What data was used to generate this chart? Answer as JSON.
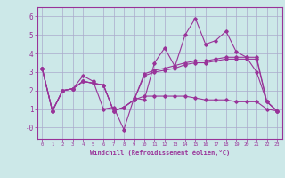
{
  "title": "",
  "xlabel": "Windchill (Refroidissement éolien,°C)",
  "ylabel": "",
  "background_color": "#cce8e8",
  "grid_color": "#aaaacc",
  "line_color": "#993399",
  "xlim": [
    -0.5,
    23.5
  ],
  "ylim": [
    -0.6,
    6.5
  ],
  "yticks": [
    0,
    1,
    2,
    3,
    4,
    5,
    6
  ],
  "ytick_labels": [
    "-0",
    "1",
    "2",
    "3",
    "4",
    "5",
    "6"
  ],
  "xticks": [
    0,
    1,
    2,
    3,
    4,
    5,
    6,
    7,
    8,
    9,
    10,
    11,
    12,
    13,
    14,
    15,
    16,
    17,
    18,
    19,
    20,
    21,
    22,
    23
  ],
  "series": [
    {
      "x": [
        0,
        1,
        2,
        3,
        4,
        5,
        6,
        7,
        8,
        9,
        10,
        11,
        12,
        13,
        14,
        15,
        16,
        17,
        18,
        19,
        20,
        21,
        22,
        23
      ],
      "y": [
        3.2,
        0.9,
        2.0,
        2.1,
        2.8,
        2.5,
        1.0,
        1.1,
        -0.1,
        1.6,
        1.5,
        3.5,
        4.3,
        3.3,
        5.0,
        5.9,
        4.5,
        4.7,
        5.2,
        4.1,
        3.8,
        3.0,
        1.4,
        0.9
      ]
    },
    {
      "x": [
        0,
        1,
        2,
        3,
        4,
        5,
        6,
        7,
        8,
        9,
        10,
        11,
        12,
        13,
        14,
        15,
        16,
        17,
        18,
        19,
        20,
        21,
        22,
        23
      ],
      "y": [
        3.2,
        0.9,
        2.0,
        2.1,
        2.5,
        2.4,
        2.3,
        0.9,
        1.1,
        1.5,
        2.8,
        3.0,
        3.1,
        3.2,
        3.4,
        3.5,
        3.5,
        3.6,
        3.7,
        3.7,
        3.7,
        3.7,
        1.4,
        0.9
      ]
    },
    {
      "x": [
        0,
        1,
        2,
        3,
        4,
        5,
        6,
        7,
        8,
        9,
        10,
        11,
        12,
        13,
        14,
        15,
        16,
        17,
        18,
        19,
        20,
        21,
        22,
        23
      ],
      "y": [
        3.2,
        0.9,
        2.0,
        2.1,
        2.5,
        2.4,
        2.3,
        0.9,
        1.1,
        1.5,
        2.9,
        3.1,
        3.2,
        3.35,
        3.5,
        3.6,
        3.6,
        3.7,
        3.8,
        3.8,
        3.8,
        3.8,
        1.4,
        0.9
      ]
    },
    {
      "x": [
        0,
        1,
        2,
        3,
        4,
        5,
        6,
        7,
        8,
        9,
        10,
        11,
        12,
        13,
        14,
        15,
        16,
        17,
        18,
        19,
        20,
        21,
        22,
        23
      ],
      "y": [
        3.2,
        0.9,
        2.0,
        2.1,
        2.5,
        2.4,
        2.3,
        0.9,
        1.1,
        1.5,
        1.7,
        1.7,
        1.7,
        1.7,
        1.7,
        1.6,
        1.5,
        1.5,
        1.5,
        1.4,
        1.4,
        1.4,
        1.0,
        0.9
      ]
    }
  ]
}
